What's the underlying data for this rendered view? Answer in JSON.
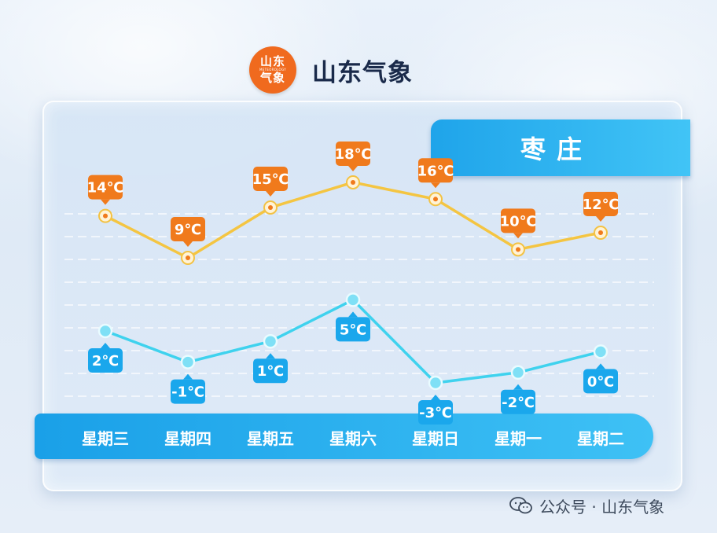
{
  "header": {
    "logo_line1": "山东",
    "logo_line2": "METEOROLOGY",
    "logo_line3": "气象",
    "title": "山东气象"
  },
  "city": "枣庄",
  "footer": {
    "text": "公众号 · 山东气象"
  },
  "colors": {
    "high_line": "#f4c542",
    "high_label": "#f07a1c",
    "low_line": "#3fd2ee",
    "low_label": "#1aa7ec",
    "day_bar": "#22aaee"
  },
  "chart_data": {
    "type": "line",
    "categories": [
      "星期三",
      "星期四",
      "星期五",
      "星期六",
      "星期日",
      "星期一",
      "星期二"
    ],
    "series": [
      {
        "values": [
          14,
          9,
          15,
          18,
          16,
          10,
          12
        ],
        "labels": [
          "14℃",
          "9℃",
          "15℃",
          "18℃",
          "16℃",
          "10℃",
          "12℃"
        ]
      },
      {
        "values": [
          2,
          -1,
          1,
          5,
          -3,
          -2,
          0
        ],
        "labels": [
          "2℃",
          "-1℃",
          "1℃",
          "5℃",
          "-3℃",
          "-2℃",
          "0℃"
        ]
      }
    ],
    "title": "",
    "xlabel": "",
    "ylabel": "",
    "grid": true,
    "legend": "none"
  }
}
